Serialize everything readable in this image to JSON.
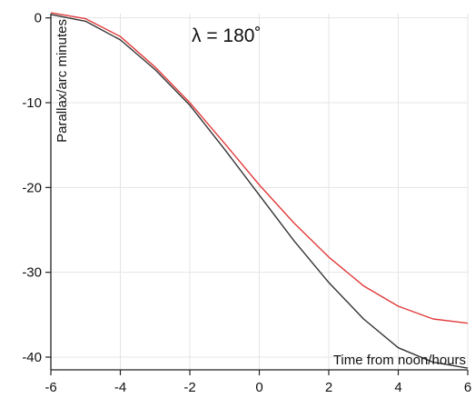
{
  "chart_data": {
    "type": "line",
    "title": "",
    "annotation": "λ = 180˚",
    "xlabel": "Time from noon/hours",
    "ylabel": "Parallax/arc minutes",
    "xlim": [
      -6,
      6
    ],
    "ylim": [
      -41.5,
      0.5
    ],
    "x_ticks": [
      -6,
      -4,
      -2,
      0,
      2,
      4,
      6
    ],
    "y_ticks": [
      0,
      -10,
      -20,
      -30,
      -40
    ],
    "x_tick_labels": [
      "-6",
      "-4",
      "-2",
      "0",
      "2",
      "4",
      "6"
    ],
    "y_tick_labels": [
      "0",
      "-10",
      "-20",
      "-30",
      "-40"
    ],
    "grid": true,
    "legend": "none",
    "x": [
      -6,
      -5,
      -4,
      -3,
      -2,
      -1,
      0,
      1,
      2,
      3,
      4,
      5,
      6
    ],
    "series": [
      {
        "color": "#e23a3a",
        "values": [
          0.6,
          -0.1,
          -2.2,
          -5.8,
          -10.0,
          -14.8,
          -19.7,
          -24.2,
          -28.2,
          -31.6,
          -34.0,
          -35.5,
          -36.0
        ]
      },
      {
        "color": "#333333",
        "values": [
          0.4,
          -0.4,
          -2.6,
          -6.1,
          -10.3,
          -15.5,
          -20.9,
          -26.3,
          -31.2,
          -35.5,
          -38.9,
          -40.6,
          -41.3
        ]
      }
    ]
  }
}
